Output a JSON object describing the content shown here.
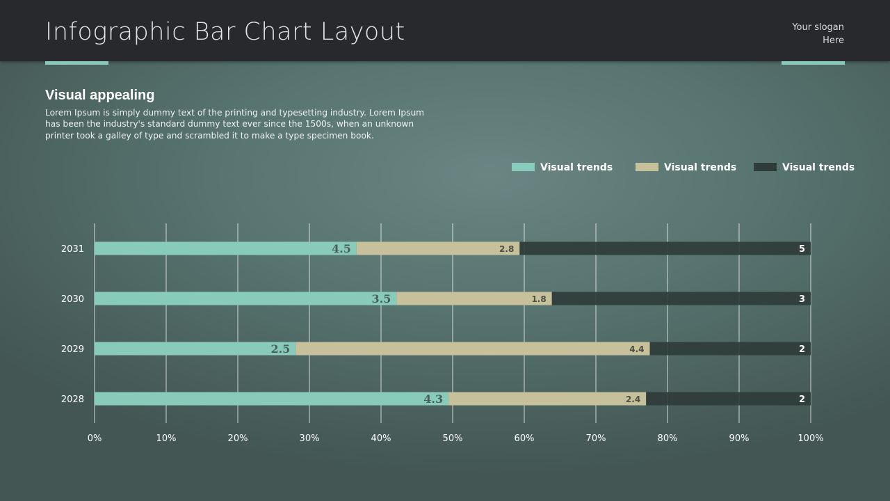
{
  "header": {
    "title": "Infographic Bar Chart Layout",
    "slogan_line1": "Your slogan",
    "slogan_line2": "Here"
  },
  "intro": {
    "heading": "Visual appealing",
    "text": "Lorem Ipsum is simply dummy text of the printing and typesetting industry. Lorem Ipsum has been the industry's standard dummy text ever since the 1500s, when an unknown printer took a galley of type and scrambled it to make a type specimen book."
  },
  "colors": {
    "accent": "#88cbbb",
    "series1": "#88cbbb",
    "series2": "#c6c09b",
    "series3": "#2f3c3a"
  },
  "chart_data": {
    "type": "bar",
    "orientation": "horizontal",
    "stacked": "percent",
    "categories": [
      "2031",
      "2030",
      "2029",
      "2028"
    ],
    "series": [
      {
        "name": "Visual trends",
        "values": [
          4.5,
          3.5,
          2.5,
          4.3
        ]
      },
      {
        "name": "Visual trends",
        "values": [
          2.8,
          1.8,
          4.4,
          2.4
        ]
      },
      {
        "name": "Visual trends",
        "values": [
          5,
          3,
          2,
          2
        ]
      }
    ],
    "x_ticks": [
      "0%",
      "10%",
      "20%",
      "30%",
      "40%",
      "50%",
      "60%",
      "70%",
      "80%",
      "90%",
      "100%"
    ],
    "xlim": [
      0,
      100
    ],
    "grid": true,
    "legend_position": "top-right"
  }
}
